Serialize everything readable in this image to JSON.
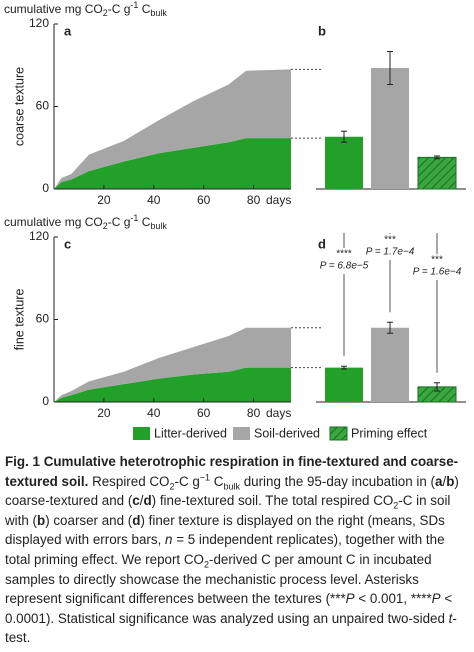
{
  "chart_data": [
    {
      "type": "area",
      "panel": "a",
      "ylabel_parts": [
        "cumulative mg CO",
        "2",
        "-C g",
        "-1",
        " C",
        "bulk"
      ],
      "ylabel": "coarse texture",
      "xlabel": "days",
      "x": [
        0,
        3,
        7,
        14,
        28,
        42,
        56,
        70,
        77,
        95
      ],
      "series": [
        {
          "color": "#22a02a",
          "values": [
            0,
            5,
            7,
            13,
            20,
            26,
            30,
            34,
            37,
            37
          ]
        },
        {
          "color": "#a6a6a6",
          "values": [
            0,
            3,
            4,
            12,
            15,
            24,
            34,
            42,
            49,
            50
          ]
        }
      ],
      "xlim": [
        0,
        95
      ],
      "ylim": [
        0,
        120
      ],
      "xticks": [
        20,
        40,
        60,
        80
      ],
      "yticks": [
        0,
        60,
        120
      ]
    },
    {
      "type": "bar",
      "panel": "b",
      "values": [
        38,
        88,
        23
      ],
      "errors": [
        4,
        12,
        1
      ],
      "colors": [
        "#22a02a",
        "#a6a6a6",
        "#3aa63f"
      ],
      "hatch": [
        false,
        false,
        true
      ],
      "ylim": [
        0,
        120
      ]
    },
    {
      "type": "area",
      "panel": "c",
      "ylabel_parts": [
        "cumulative mg CO",
        "2",
        "-C g",
        "-1",
        " C",
        "bulk"
      ],
      "ylabel": "fine texture",
      "xlabel": "days",
      "x": [
        0,
        3,
        7,
        14,
        28,
        42,
        56,
        70,
        77,
        95
      ],
      "series": [
        {
          "color": "#22a02a",
          "values": [
            0,
            3,
            5,
            9,
            13,
            17,
            20,
            22,
            25,
            25
          ]
        },
        {
          "color": "#a6a6a6",
          "values": [
            0,
            2,
            3,
            6,
            9,
            15,
            20,
            26,
            29,
            29
          ]
        }
      ],
      "xlim": [
        0,
        95
      ],
      "ylim": [
        0,
        120
      ],
      "xticks": [
        20,
        40,
        60,
        80
      ],
      "yticks": [
        0,
        60,
        120
      ]
    },
    {
      "type": "bar",
      "panel": "d",
      "values": [
        25,
        54,
        11
      ],
      "errors": [
        1,
        4,
        3
      ],
      "colors": [
        "#22a02a",
        "#a6a6a6",
        "#3aa63f"
      ],
      "hatch": [
        false,
        false,
        true
      ],
      "ylim": [
        0,
        120
      ],
      "annotations": [
        {
          "stars": "****",
          "text": "P = 6.8e−5"
        },
        {
          "stars": "***",
          "text": "P = 1.7e−4"
        },
        {
          "stars": "***",
          "text": "P = 1.6e−4"
        }
      ]
    }
  ],
  "legend": [
    {
      "label": "Litter-derived",
      "color": "#22a02a",
      "hatch": false
    },
    {
      "label": "Soil-derived",
      "color": "#a6a6a6",
      "hatch": false
    },
    {
      "label": "Priming effect",
      "color": "#3aa63f",
      "hatch": true
    }
  ],
  "caption": [
    "Fig. 1 Cumulative heterotrophic respiration in fine-textured and coarse-textured soil.",
    " Respired CO",
    "2",
    "-C g",
    "−1",
    " C",
    "bulk",
    " during the 95-day incubation in (",
    "a",
    "/",
    "b",
    ") coarse-textured and (",
    "c",
    "/",
    "d",
    ") fine-textured soil. The total respired CO",
    "2",
    "-C in soil with (",
    "b",
    ") coarser and (",
    "d",
    ") finer texture is displayed on the right (means, SDs displayed with errors bars, ",
    "n",
    " = 5 independent replicates), together with the total priming effect. We report CO",
    "2",
    "-derived C per amount C in incubated samples to directly showcase the mechanistic process level. Asterisks represent significant differences between the textures (***",
    "P",
    " < 0.001, ****",
    "P",
    " < 0.0001). Statistical significance was analyzed using an unpaired two-sided ",
    "t",
    "-test."
  ]
}
